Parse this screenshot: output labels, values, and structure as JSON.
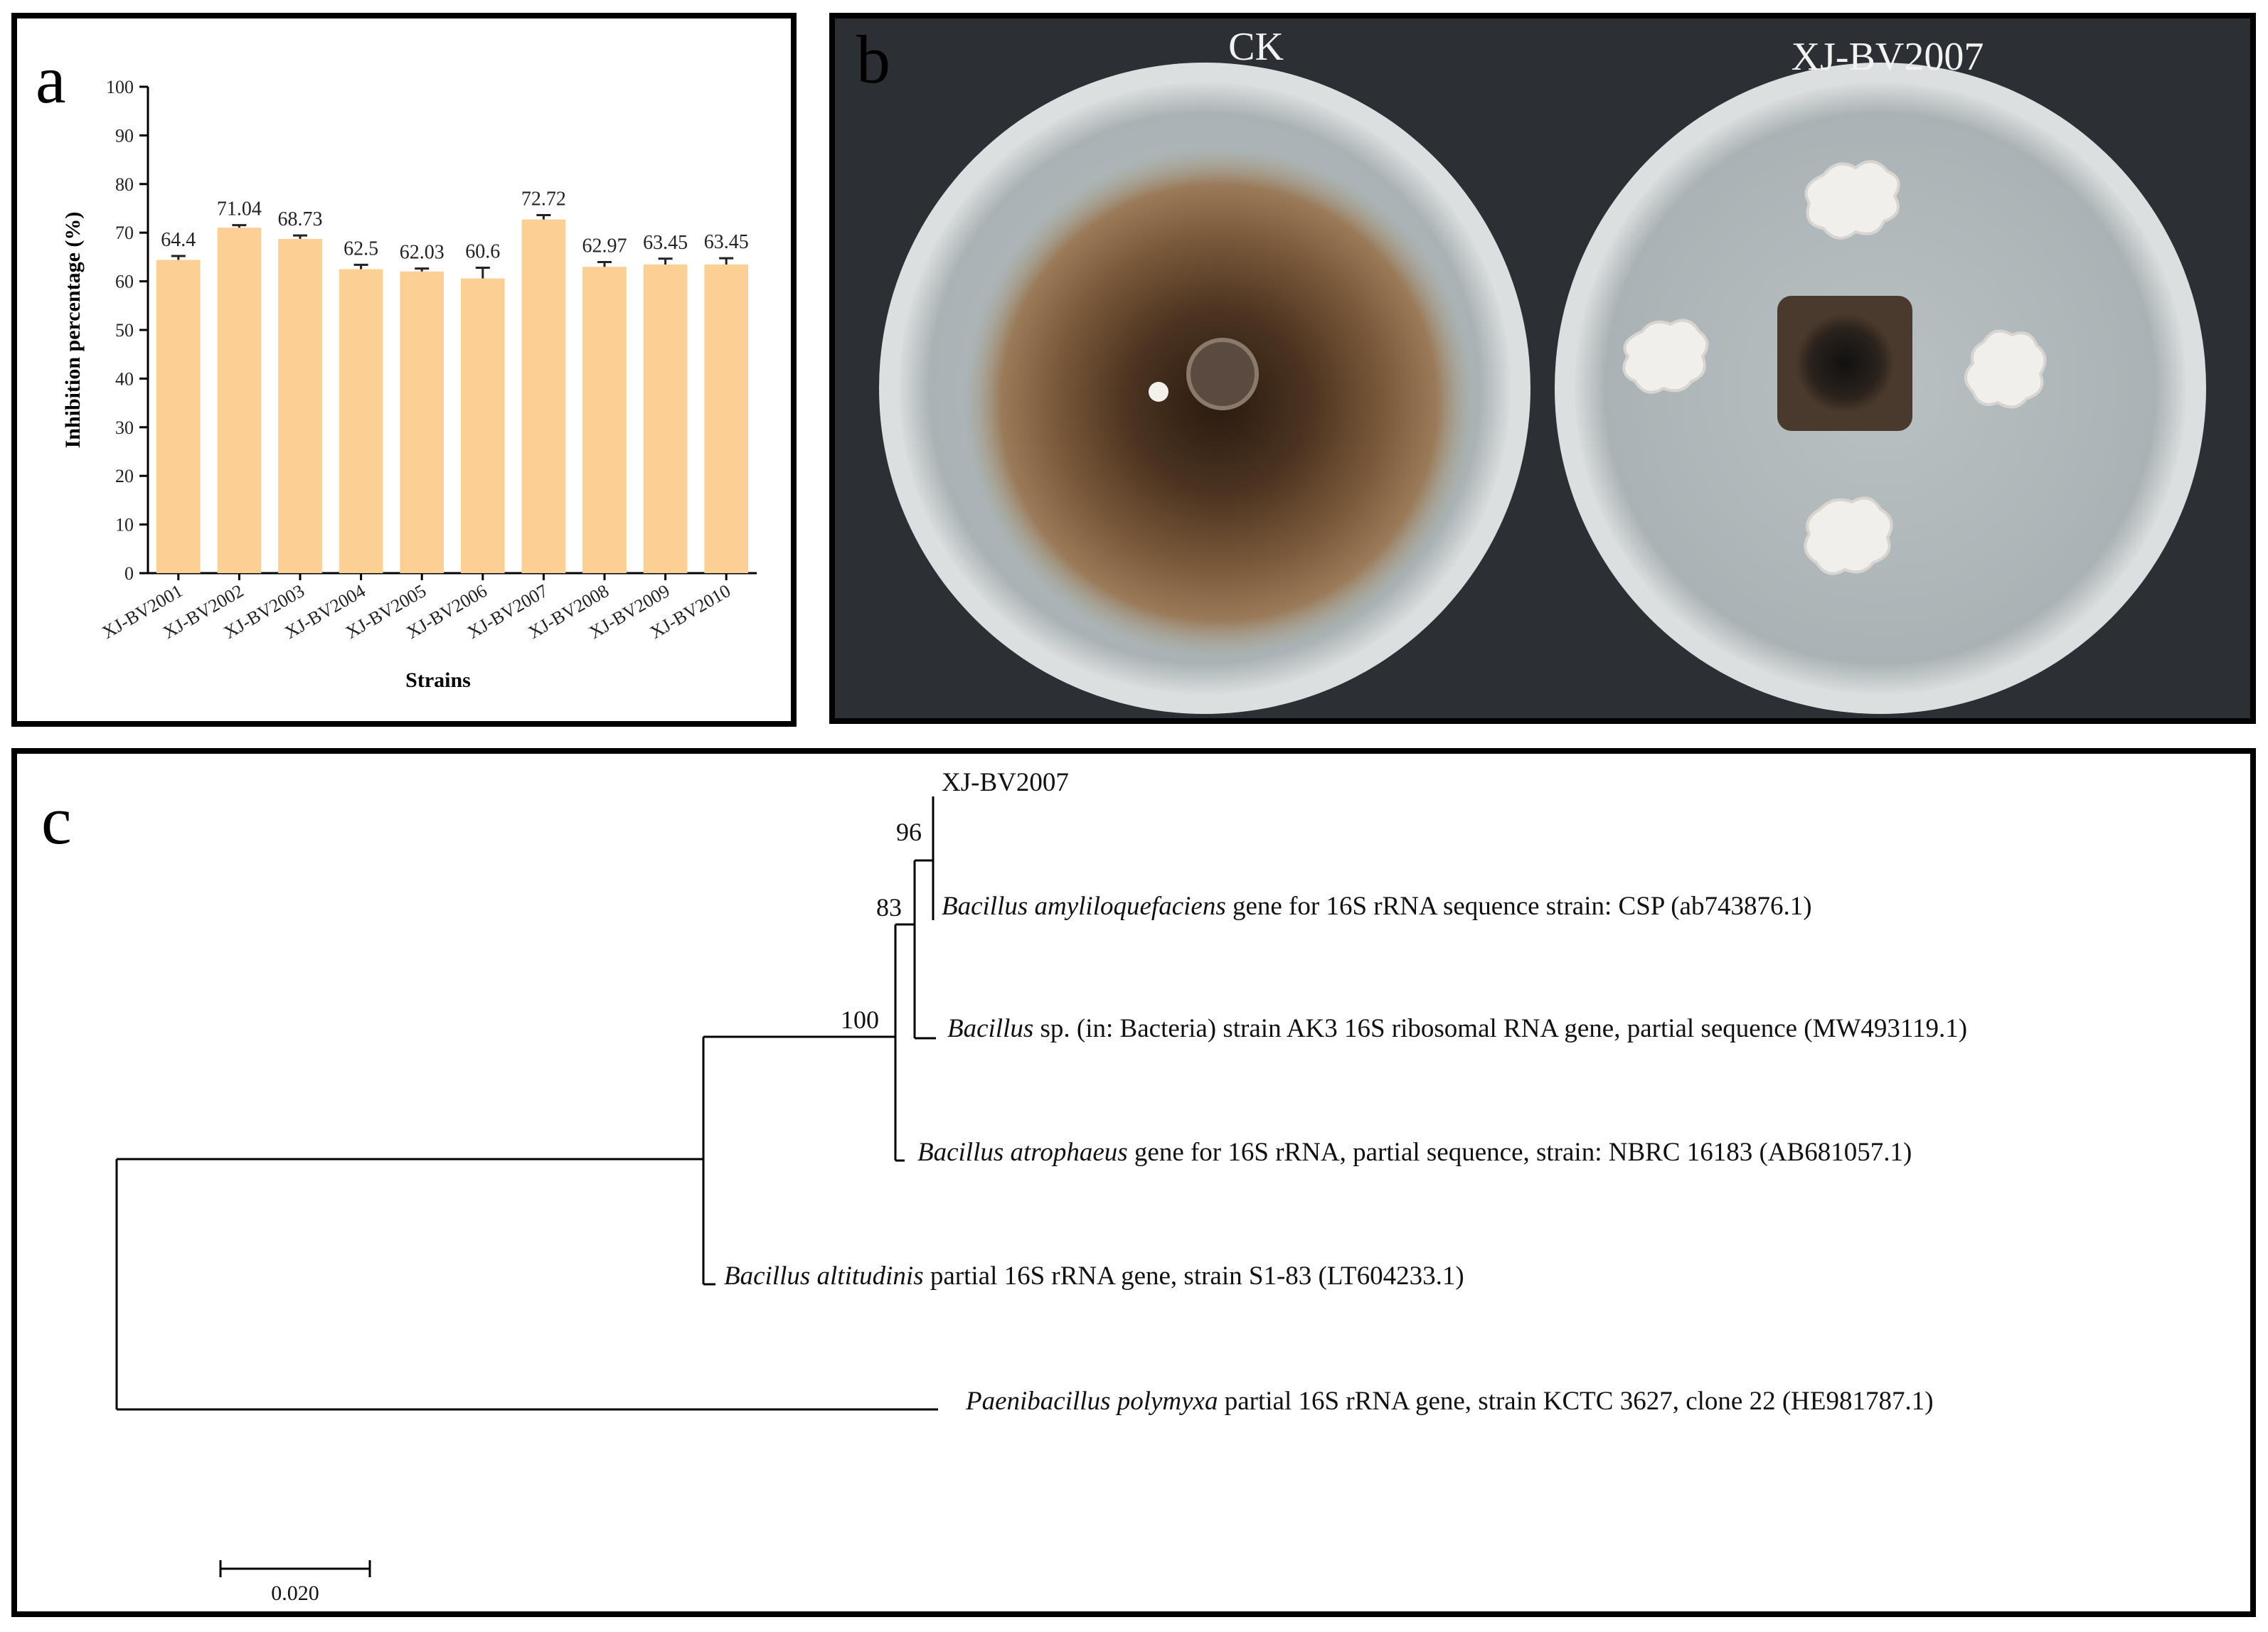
{
  "panels": {
    "a": {
      "letter": "a"
    },
    "b": {
      "letter": "b",
      "left_label": "CK",
      "right_label": "XJ-BV2007"
    },
    "c": {
      "letter": "c"
    }
  },
  "chart_data": {
    "type": "bar",
    "xlabel": "Strains",
    "ylabel": "Inhibition percentage (%)",
    "ylim": [
      0,
      100
    ],
    "yticks": [
      0,
      10,
      20,
      30,
      40,
      50,
      60,
      70,
      80,
      90,
      100
    ],
    "categories": [
      "XJ-BV2001",
      "XJ-BV2002",
      "XJ-BV2003",
      "XJ-BV2004",
      "XJ-BV2005",
      "XJ-BV2006",
      "XJ-BV2007",
      "XJ-BV2008",
      "XJ-BV2009",
      "XJ-BV2010"
    ],
    "values": [
      64.4,
      71.04,
      68.73,
      62.5,
      62.03,
      60.6,
      72.72,
      62.97,
      63.45,
      63.45
    ],
    "value_labels": [
      "64.4",
      "71.04",
      "68.73",
      "62.5",
      "62.03",
      "60.6",
      "72.72",
      "62.97",
      "63.45",
      "63.45"
    ],
    "errors": [
      0.8,
      0.5,
      0.7,
      0.9,
      0.6,
      2.2,
      0.9,
      1.0,
      1.2,
      1.3
    ],
    "bar_color": "#fccf95",
    "grid": false
  },
  "tree": {
    "taxa": [
      {
        "italic": "",
        "rest": "XJ-BV2007"
      },
      {
        "italic": "Bacillus amyliloquefaciens",
        "rest": " gene for 16S rRNA sequence strain: CSP (ab743876.1)"
      },
      {
        "italic": "Bacillus",
        "rest": " sp. (in: Bacteria) strain AK3 16S ribosomal RNA gene, partial sequence (MW493119.1)"
      },
      {
        "italic": "Bacillus atrophaeus",
        "rest": " gene for 16S rRNA, partial sequence, strain: NBRC 16183 (AB681057.1)"
      },
      {
        "italic": "Bacillus altitudinis",
        "rest": " partial 16S rRNA gene, strain S1-83 (LT604233.1)"
      },
      {
        "italic": "Paenibacillus polymyxa",
        "rest": " partial 16S rRNA gene, strain KCTC 3627, clone 22 (HE981787.1)"
      }
    ],
    "bootstrap": [
      "96",
      "83",
      "100"
    ],
    "scale_label": "0.020"
  }
}
